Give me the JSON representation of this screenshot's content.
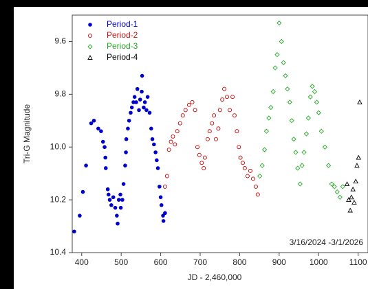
{
  "chart_data": {
    "type": "scatter",
    "xlabel": "JD - 2,460,000",
    "ylabel": "Tri-G Magnitude",
    "annotation": "3/16/2024 -3/1/2026",
    "xlim": [
      376,
      1125
    ],
    "ylim": [
      9.5,
      10.4
    ],
    "y_reversed": true,
    "xticks": [
      400,
      500,
      600,
      700,
      800,
      900,
      1000,
      1100
    ],
    "yticks": [
      {
        "value": 9.6,
        "label": "9.6"
      },
      {
        "value": 9.8,
        "label": "9.8"
      },
      {
        "value": 10,
        "label": "10.0"
      },
      {
        "value": 10.2,
        "label": "10.2"
      },
      {
        "value": 10.4,
        "label": "10.4"
      }
    ],
    "legend": "top-left",
    "series": [
      {
        "name": "Period-1",
        "color": "#0000cc",
        "marker": "filled-circle",
        "x": [
          381,
          395,
          403,
          411,
          424,
          431,
          442,
          449,
          454,
          458,
          460,
          461,
          466,
          468,
          471,
          475,
          480,
          485,
          489,
          491,
          494,
          498,
          499,
          503,
          506,
          510,
          512,
          513,
          517,
          520,
          524,
          527,
          531,
          534,
          538,
          541,
          545,
          548,
          552,
          553,
          557,
          560,
          564,
          567,
          572,
          576,
          579,
          583,
          587,
          590,
          593,
          597,
          600,
          602,
          606,
          607,
          611
        ],
        "values": [
          10.32,
          10.26,
          10.17,
          10.07,
          9.91,
          9.9,
          9.93,
          9.94,
          9.98,
          10.0,
          10.04,
          10.08,
          10.16,
          10.18,
          10.2,
          10.22,
          10.19,
          10.23,
          10.26,
          10.29,
          10.2,
          10.18,
          10.23,
          10.2,
          10.14,
          10.07,
          10.02,
          9.97,
          9.93,
          9.9,
          9.87,
          9.85,
          9.83,
          9.81,
          9.83,
          9.78,
          9.86,
          9.82,
          9.79,
          9.73,
          9.85,
          9.83,
          9.86,
          9.81,
          9.87,
          9.93,
          9.97,
          9.99,
          10.02,
          10.05,
          10.08,
          10.15,
          10.19,
          10.22,
          10.26,
          10.28,
          10.25
        ]
      },
      {
        "name": "Period-2",
        "color": "#cc1111",
        "marker": "open-circle",
        "x": [
          611,
          616,
          621,
          626,
          631,
          636,
          642,
          649,
          656,
          663,
          672,
          680,
          687,
          693,
          698,
          704,
          709,
          712,
          719,
          724,
          730,
          735,
          740,
          746,
          750,
          756,
          761,
          768,
          775,
          782,
          787,
          793,
          798,
          802,
          808,
          813,
          820,
          827,
          834,
          841,
          846
        ],
        "values": [
          10.15,
          10.11,
          10.01,
          9.98,
          9.96,
          9.99,
          9.94,
          9.91,
          9.88,
          9.86,
          9.84,
          9.83,
          9.86,
          10.0,
          10.03,
          10.06,
          10.08,
          10.04,
          9.97,
          9.94,
          9.91,
          9.88,
          9.97,
          9.93,
          9.86,
          9.82,
          9.78,
          9.81,
          9.86,
          9.81,
          9.88,
          9.94,
          10.0,
          10.04,
          10.06,
          10.08,
          10.11,
          10.09,
          10.12,
          10.15,
          10.18
        ]
      },
      {
        "name": "Period-3",
        "color": "#22aa22",
        "marker": "open-diamond",
        "x": [
          851,
          857,
          863,
          868,
          874,
          879,
          885,
          890,
          895,
          900,
          906,
          911,
          916,
          921,
          927,
          932,
          937,
          942,
          947,
          953,
          958,
          963,
          969,
          974,
          979,
          984,
          990,
          995,
          1000,
          1007,
          1016,
          1025,
          1033,
          1040,
          1047,
          1054,
          1061
        ],
        "values": [
          10.11,
          10.07,
          10.01,
          9.94,
          9.89,
          9.85,
          9.79,
          9.7,
          9.65,
          9.53,
          9.6,
          9.68,
          9.73,
          9.78,
          9.83,
          9.9,
          9.97,
          10.02,
          10.08,
          10.14,
          10.07,
          10.02,
          9.95,
          9.89,
          9.81,
          9.77,
          9.79,
          9.83,
          9.87,
          9.94,
          10.0,
          10.07,
          10.14,
          10.15,
          10.17,
          10.19,
          10.15
        ]
      },
      {
        "name": "Period-4",
        "color": "#000000",
        "marker": "open-triangle",
        "x": [
          1072,
          1076,
          1080,
          1083,
          1087,
          1090,
          1094,
          1097,
          1101,
          1104
        ],
        "values": [
          10.14,
          10.2,
          10.24,
          10.19,
          10.16,
          10.21,
          10.13,
          10.07,
          10.04,
          9.83
        ]
      }
    ]
  }
}
